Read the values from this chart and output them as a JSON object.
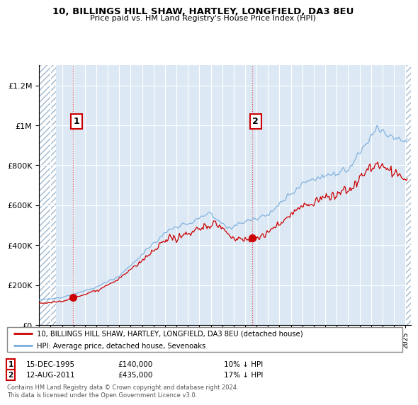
{
  "title_line1": "10, BILLINGS HILL SHAW, HARTLEY, LONGFIELD, DA3 8EU",
  "title_line2": "Price paid vs. HM Land Registry's House Price Index (HPI)",
  "legend_line1": "10, BILLINGS HILL SHAW, HARTLEY, LONGFIELD, DA3 8EU (detached house)",
  "legend_line2": "HPI: Average price, detached house, Sevenoaks",
  "annotation1_label": "1",
  "annotation1_date": "15-DEC-1995",
  "annotation1_price": "£140,000",
  "annotation1_hpi": "10% ↓ HPI",
  "annotation2_label": "2",
  "annotation2_date": "12-AUG-2011",
  "annotation2_price": "£435,000",
  "annotation2_hpi": "17% ↓ HPI",
  "footer": "Contains HM Land Registry data © Crown copyright and database right 2024.\nThis data is licensed under the Open Government Licence v3.0.",
  "sale1_year": 1995.96,
  "sale1_value": 140000,
  "sale2_year": 2011.62,
  "sale2_value": 435000,
  "hpi_color": "#7aacdc",
  "sale_color": "#cc0000",
  "vline_color": "#dd4444",
  "dot_color": "#cc0000",
  "bg_color": "#dce9f5",
  "hatch_color": "#b0c4d8",
  "ylim_min": 0,
  "ylim_max": 1300000,
  "xlim_min": 1993.0,
  "xlim_max": 2025.5,
  "yticks": [
    0,
    200000,
    400000,
    600000,
    800000,
    1000000,
    1200000
  ]
}
